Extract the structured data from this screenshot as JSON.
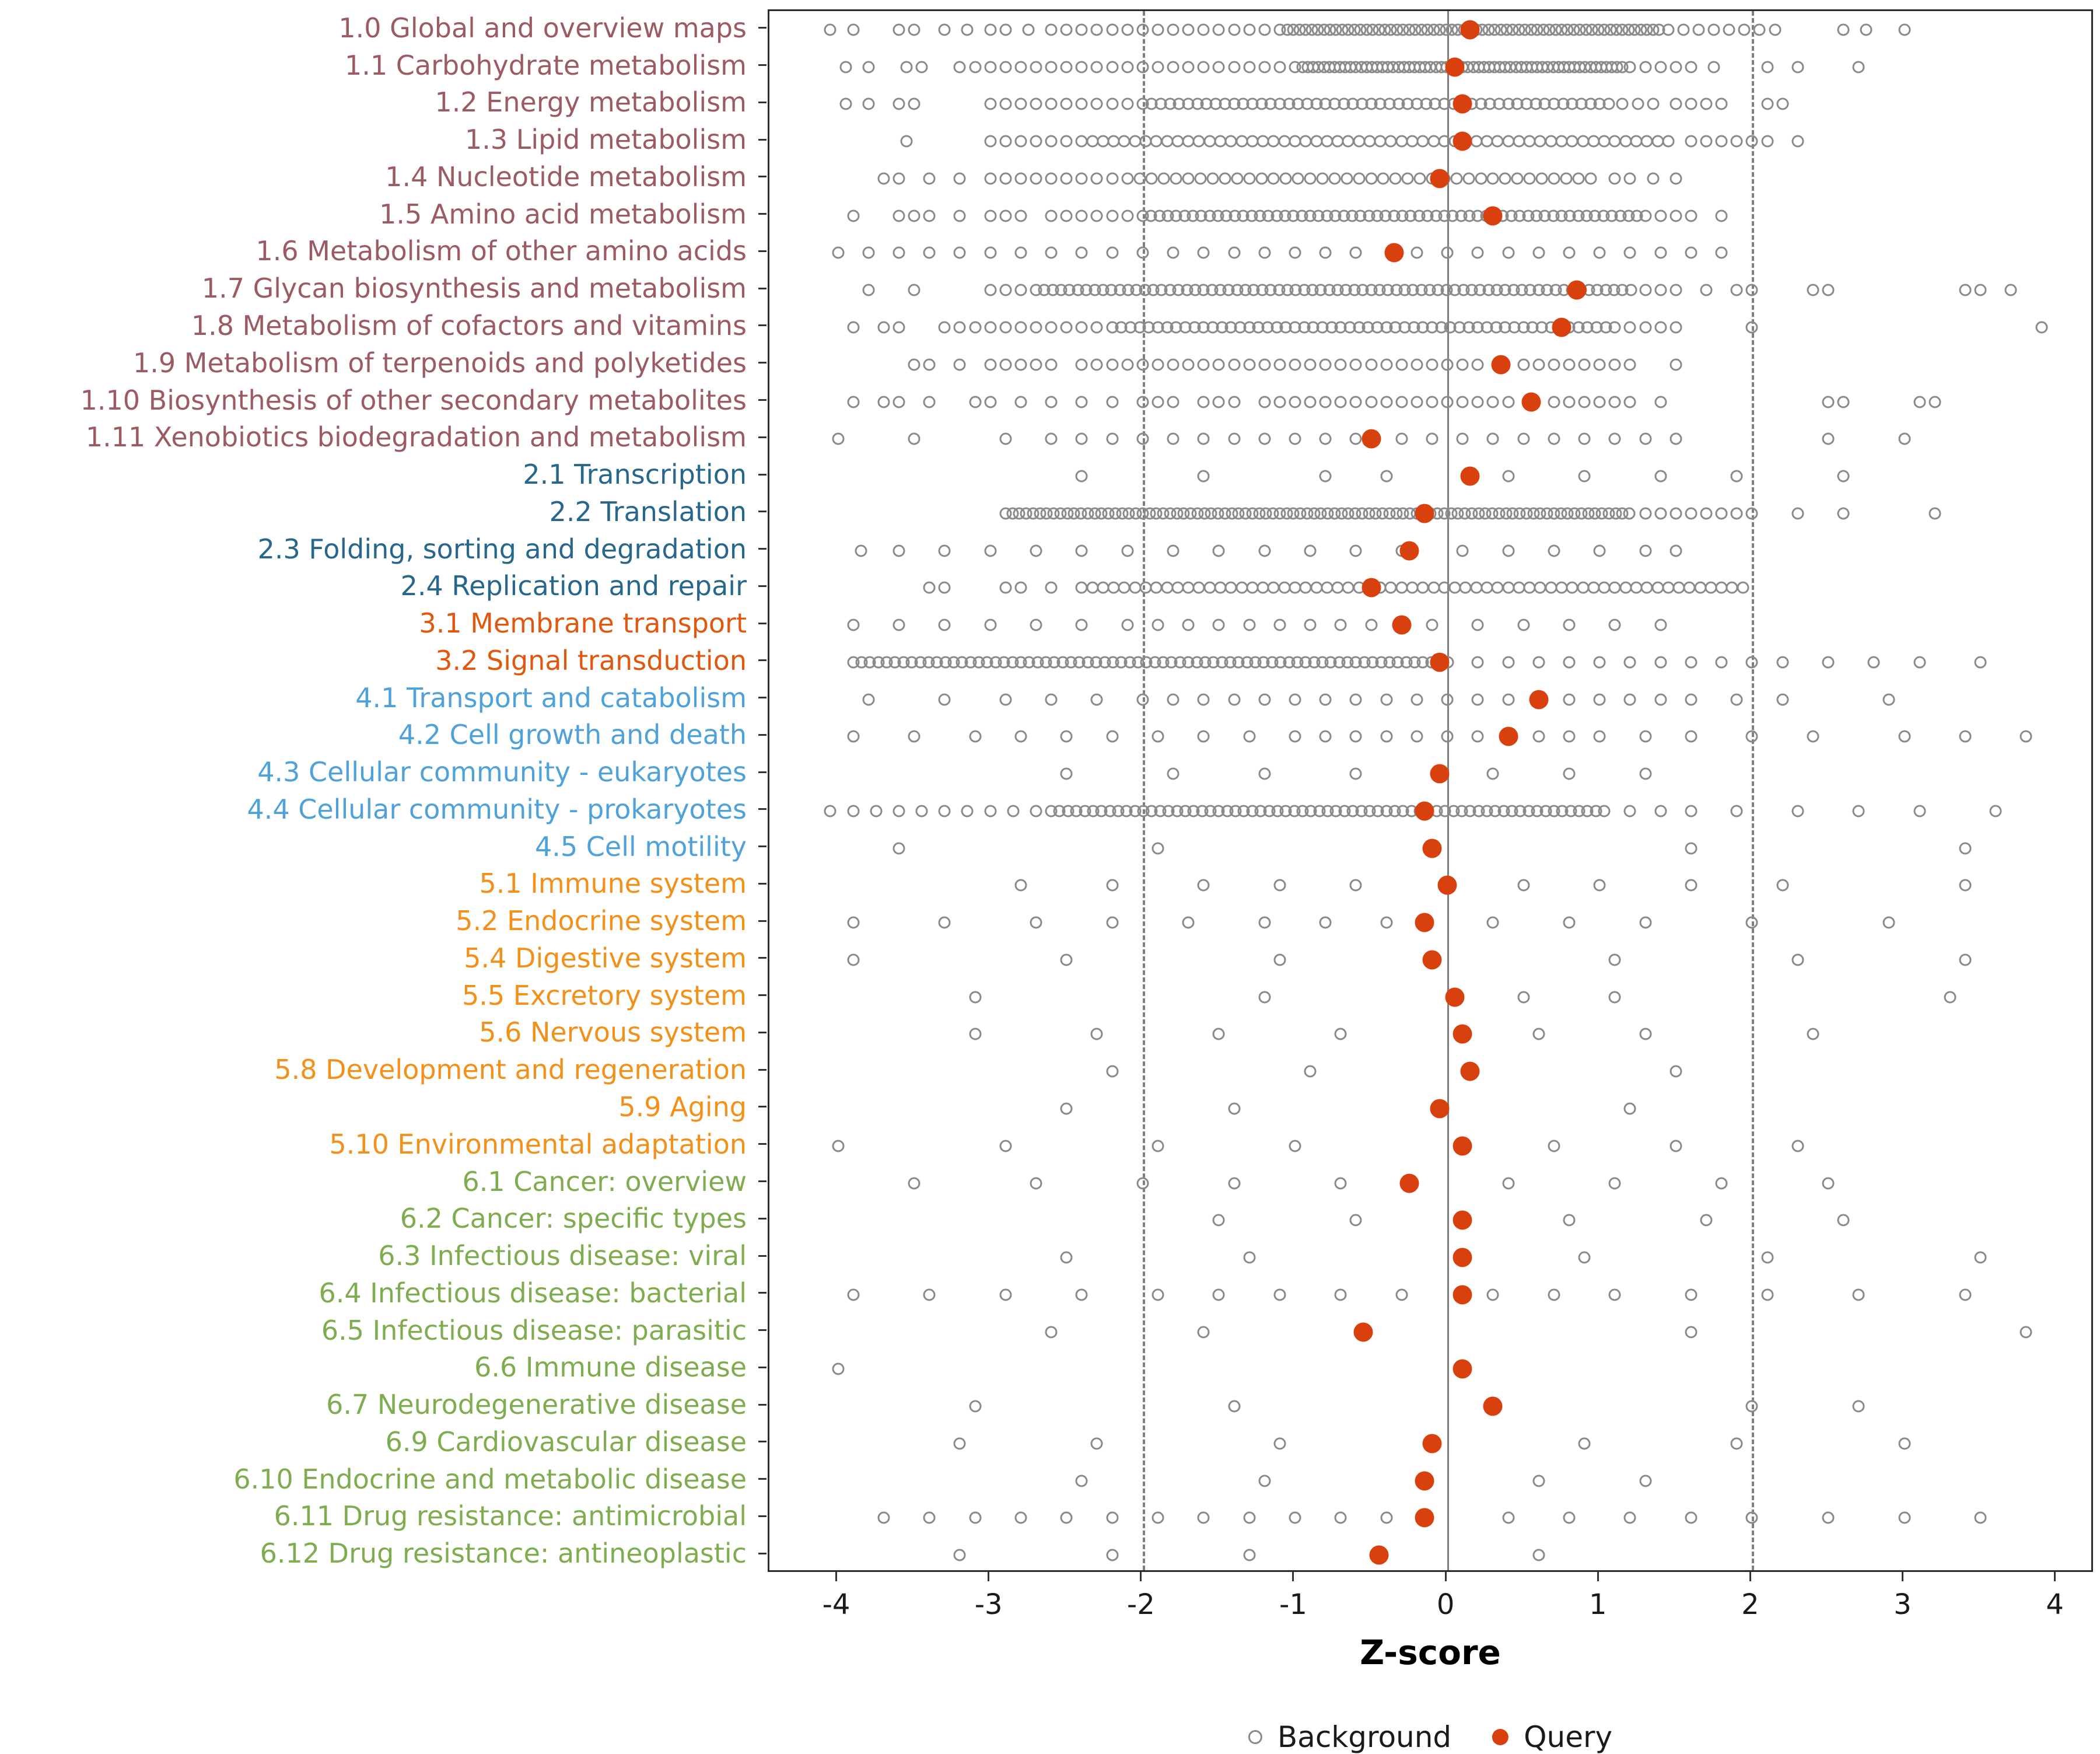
{
  "chart_data": {
    "type": "scatter",
    "title": "",
    "xlabel": "Z-score",
    "ylabel": "",
    "xlim": [
      -4.45,
      4.25
    ],
    "x_ticks": [
      -4,
      -3,
      -2,
      -1,
      0,
      1,
      2,
      3,
      4
    ],
    "grid": false,
    "reference_lines": {
      "solid": [
        0
      ],
      "dashed": [
        -2,
        2
      ]
    },
    "legend": {
      "position": "bottom",
      "items": [
        {
          "label": "Background",
          "marker": "open-circle",
          "color": "#8a8a8a"
        },
        {
          "label": "Query",
          "marker": "filled-circle",
          "color": "#D8400D"
        }
      ]
    },
    "colors": {
      "background_marker": "#8a8a8a",
      "query_marker": "#D8400D",
      "axis_text": "#1a1a1a",
      "reference_line": "#7f7f7f",
      "panel_border": "#2b2b2b"
    },
    "group_colors": {
      "1": "#9C5B63",
      "2": "#27678C",
      "3": "#E2570F",
      "4": "#4FA2D9",
      "5": "#F39019",
      "6": "#7FAC4F"
    },
    "rows": [
      {
        "label": "1.0 Global and overview maps",
        "group": "1",
        "query": 0.15,
        "bg_band": [
          -1.05,
          1.4,
          0.04
        ],
        "bg_points": [
          -4.05,
          -3.9,
          -3.6,
          -3.5,
          -3.3,
          -3.15,
          -3.0,
          -2.9,
          -2.75,
          -2.6,
          -2.5,
          -2.4,
          -2.3,
          -2.2,
          -2.1,
          -2.0,
          -1.9,
          -1.8,
          -1.7,
          -1.6,
          -1.5,
          -1.4,
          -1.3,
          -1.2,
          -1.1,
          1.45,
          1.55,
          1.65,
          1.75,
          1.85,
          1.95,
          2.05,
          2.15,
          2.6,
          2.75,
          3.0
        ]
      },
      {
        "label": "1.1 Carbohydrate metabolism",
        "group": "1",
        "query": 0.05,
        "bg_band": [
          -0.95,
          1.15,
          0.035
        ],
        "bg_points": [
          -3.95,
          -3.8,
          -3.55,
          -3.45,
          -3.2,
          -3.1,
          -3.0,
          -2.9,
          -2.8,
          -2.7,
          -2.6,
          -2.5,
          -2.4,
          -2.3,
          -2.2,
          -2.1,
          -2.0,
          -1.9,
          -1.8,
          -1.7,
          -1.6,
          -1.5,
          -1.4,
          -1.3,
          -1.2,
          -1.1,
          -1.0,
          1.2,
          1.3,
          1.4,
          1.5,
          1.6,
          1.75,
          2.1,
          2.3,
          2.7
        ]
      },
      {
        "label": "1.2 Energy metabolism",
        "group": "1",
        "query": 0.1,
        "bg_band": [
          -2.0,
          1.1,
          0.06
        ],
        "bg_points": [
          -3.95,
          -3.8,
          -3.6,
          -3.5,
          -3.0,
          -2.9,
          -2.8,
          -2.7,
          -2.6,
          -2.5,
          -2.4,
          -2.3,
          -2.2,
          -2.1,
          1.15,
          1.25,
          1.35,
          1.5,
          1.6,
          1.7,
          1.8,
          2.1,
          2.2
        ]
      },
      {
        "label": "1.3 Lipid metabolism",
        "group": "1",
        "query": 0.1,
        "bg_band": [
          -2.4,
          1.5,
          0.07
        ],
        "bg_points": [
          -3.55,
          -3.0,
          -2.9,
          -2.8,
          -2.7,
          -2.6,
          -2.5,
          1.6,
          1.7,
          1.8,
          1.9,
          2.0,
          2.1,
          2.3
        ]
      },
      {
        "label": "1.4 Nucleotide metabolism",
        "group": "1",
        "query": -0.05,
        "bg_band": [
          -2.1,
          1.0,
          0.08
        ],
        "bg_points": [
          -3.7,
          -3.6,
          -3.4,
          -3.2,
          -3.0,
          -2.9,
          -2.8,
          -2.7,
          -2.6,
          -2.5,
          -2.4,
          -2.3,
          -2.2,
          1.1,
          1.2,
          1.35,
          1.5
        ]
      },
      {
        "label": "1.5 Amino acid metabolism",
        "group": "1",
        "query": 0.3,
        "bg_band": [
          -2.0,
          1.25,
          0.055
        ],
        "bg_points": [
          -3.9,
          -3.6,
          -3.5,
          -3.4,
          -3.2,
          -3.0,
          -2.9,
          -2.8,
          -2.6,
          -2.5,
          -2.4,
          -2.3,
          -2.2,
          -2.1,
          1.3,
          1.4,
          1.5,
          1.6,
          1.8
        ]
      },
      {
        "label": "1.6 Metabolism of other amino acids",
        "group": "1",
        "query": -0.35,
        "bg_points": [
          -4.0,
          -3.8,
          -3.6,
          -3.4,
          -3.2,
          -3.0,
          -2.8,
          -2.6,
          -2.4,
          -2.2,
          -2.0,
          -1.8,
          -1.6,
          -1.4,
          -1.2,
          -1.0,
          -0.8,
          -0.6,
          -0.2,
          0.0,
          0.2,
          0.4,
          0.6,
          0.8,
          1.0,
          1.2,
          1.4,
          1.6,
          1.8
        ]
      },
      {
        "label": "1.7 Glycan biosynthesis and metabolism",
        "group": "1",
        "query": 0.85,
        "bg_band": [
          -2.7,
          1.25,
          0.055
        ],
        "bg_points": [
          -3.8,
          -3.5,
          -3.0,
          -2.9,
          -2.8,
          1.3,
          1.4,
          1.5,
          1.7,
          1.9,
          2.0,
          2.4,
          2.5,
          3.4,
          3.5,
          3.7
        ]
      },
      {
        "label": "1.8 Metabolism of cofactors and vitamins",
        "group": "1",
        "query": 0.75,
        "bg_band": [
          -2.2,
          1.15,
          0.06
        ],
        "bg_points": [
          -3.9,
          -3.7,
          -3.6,
          -3.3,
          -3.2,
          -3.1,
          -3.0,
          -2.9,
          -2.8,
          -2.7,
          -2.6,
          -2.5,
          -2.4,
          -2.3,
          1.2,
          1.3,
          1.4,
          1.5,
          2.0,
          3.9
        ]
      },
      {
        "label": "1.9 Metabolism of terpenoids and polyketides",
        "group": "1",
        "query": 0.35,
        "bg_points": [
          -3.5,
          -3.4,
          -3.2,
          -3.0,
          -2.9,
          -2.8,
          -2.7,
          -2.6,
          -2.4,
          -2.3,
          -2.2,
          -2.1,
          -2.0,
          -1.9,
          -1.8,
          -1.7,
          -1.6,
          -1.5,
          -1.4,
          -1.3,
          -1.2,
          -1.1,
          -1.0,
          -0.9,
          -0.8,
          -0.7,
          -0.6,
          -0.5,
          -0.4,
          -0.3,
          -0.2,
          -0.1,
          0.0,
          0.1,
          0.2,
          0.5,
          0.6,
          0.7,
          0.8,
          0.9,
          1.0,
          1.1,
          1.2,
          1.5
        ]
      },
      {
        "label": "1.10 Biosynthesis of other secondary metabolites",
        "group": "1",
        "query": 0.55,
        "bg_points": [
          -3.9,
          -3.7,
          -3.6,
          -3.4,
          -3.1,
          -3.0,
          -2.8,
          -2.6,
          -2.4,
          -2.2,
          -2.0,
          -1.9,
          -1.8,
          -1.6,
          -1.5,
          -1.4,
          -1.2,
          -1.1,
          -1.0,
          -0.9,
          -0.8,
          -0.7,
          -0.6,
          -0.5,
          -0.4,
          -0.3,
          -0.2,
          -0.1,
          0.0,
          0.1,
          0.2,
          0.3,
          0.4,
          0.7,
          0.8,
          0.9,
          1.0,
          1.1,
          1.2,
          1.4,
          2.5,
          2.6,
          3.1,
          3.2
        ]
      },
      {
        "label": "1.11 Xenobiotics biodegradation and metabolism",
        "group": "1",
        "query": -0.5,
        "bg_points": [
          -4.0,
          -3.5,
          -2.9,
          -2.6,
          -2.4,
          -2.2,
          -2.0,
          -1.8,
          -1.6,
          -1.4,
          -1.2,
          -1.0,
          -0.8,
          -0.6,
          -0.3,
          -0.1,
          0.1,
          0.3,
          0.5,
          0.7,
          0.9,
          1.1,
          1.3,
          1.5,
          2.5,
          3.0
        ]
      },
      {
        "label": "2.1 Transcription",
        "group": "2",
        "query": 0.15,
        "bg_points": [
          -2.4,
          -1.6,
          -0.8,
          -0.4,
          0.4,
          0.9,
          1.4,
          1.9,
          2.6
        ]
      },
      {
        "label": "2.2 Translation",
        "group": "2",
        "query": -0.15,
        "bg_band": [
          -2.9,
          1.2,
          0.045
        ],
        "bg_points": [
          1.3,
          1.4,
          1.5,
          1.6,
          1.7,
          1.8,
          1.9,
          2.0,
          2.3,
          2.6,
          3.2
        ]
      },
      {
        "label": "2.3 Folding, sorting and degradation",
        "group": "2",
        "query": -0.25,
        "bg_points": [
          -3.85,
          -3.6,
          -3.3,
          -3.0,
          -2.7,
          -2.4,
          -2.1,
          -1.8,
          -1.5,
          -1.2,
          -0.9,
          -0.6,
          -0.3,
          0.1,
          0.4,
          0.7,
          1.0,
          1.3,
          1.5
        ]
      },
      {
        "label": "2.4 Replication and repair",
        "group": "2",
        "query": -0.5,
        "bg_band": [
          -2.4,
          2.0,
          0.07
        ],
        "bg_points": [
          -3.4,
          -3.3,
          -2.9,
          -2.8,
          -2.6
        ]
      },
      {
        "label": "3.1 Membrane transport",
        "group": "3",
        "query": -0.3,
        "bg_points": [
          -3.9,
          -3.6,
          -3.3,
          -3.0,
          -2.7,
          -2.4,
          -2.1,
          -1.9,
          -1.7,
          -1.5,
          -1.3,
          -1.1,
          -0.9,
          -0.7,
          -0.5,
          -0.1,
          0.2,
          0.5,
          0.8,
          1.1,
          1.4
        ]
      },
      {
        "label": "3.2 Signal transduction",
        "group": "3",
        "query": -0.05,
        "bg_band": [
          -3.9,
          0.05,
          0.055
        ],
        "bg_points": [
          0.2,
          0.4,
          0.6,
          0.8,
          1.0,
          1.2,
          1.4,
          1.6,
          1.8,
          2.0,
          2.2,
          2.5,
          2.8,
          3.1,
          3.5
        ]
      },
      {
        "label": "4.1 Transport and catabolism",
        "group": "4",
        "query": 0.6,
        "bg_points": [
          -3.8,
          -3.3,
          -2.9,
          -2.6,
          -2.3,
          -2.0,
          -1.8,
          -1.6,
          -1.4,
          -1.2,
          -1.0,
          -0.8,
          -0.6,
          -0.4,
          -0.2,
          0.0,
          0.2,
          0.4,
          0.8,
          1.0,
          1.2,
          1.4,
          1.6,
          1.9,
          2.2,
          2.9
        ]
      },
      {
        "label": "4.2 Cell growth and death",
        "group": "4",
        "query": 0.4,
        "bg_points": [
          -3.9,
          -3.5,
          -3.1,
          -2.8,
          -2.5,
          -2.2,
          -1.9,
          -1.6,
          -1.3,
          -1.0,
          -0.8,
          -0.6,
          -0.4,
          -0.2,
          0.0,
          0.2,
          0.6,
          0.8,
          1.0,
          1.3,
          1.6,
          2.0,
          2.4,
          3.0,
          3.4,
          3.8
        ]
      },
      {
        "label": "4.3 Cellular community - eukaryotes",
        "group": "4",
        "query": -0.05,
        "bg_points": [
          -2.5,
          -1.8,
          -1.2,
          -0.6,
          0.3,
          0.8,
          1.3
        ]
      },
      {
        "label": "4.4 Cellular community - prokaryotes",
        "group": "4",
        "query": -0.15,
        "bg_band": [
          -2.6,
          1.05,
          0.055
        ],
        "bg_points": [
          -4.05,
          -3.9,
          -3.75,
          -3.6,
          -3.45,
          -3.3,
          -3.15,
          -3.0,
          -2.85,
          -2.7,
          1.2,
          1.4,
          1.6,
          1.9,
          2.3,
          2.7,
          3.1,
          3.6
        ]
      },
      {
        "label": "4.5 Cell motility",
        "group": "4",
        "query": -0.1,
        "bg_points": [
          -3.6,
          -1.9,
          1.6,
          3.4
        ]
      },
      {
        "label": "5.1 Immune system",
        "group": "5",
        "query": 0.0,
        "bg_points": [
          -2.8,
          -2.2,
          -1.6,
          -1.1,
          -0.6,
          0.5,
          1.0,
          1.6,
          2.2,
          3.4
        ]
      },
      {
        "label": "5.2 Endocrine system",
        "group": "5",
        "query": -0.15,
        "bg_points": [
          -3.9,
          -3.3,
          -2.7,
          -2.2,
          -1.7,
          -1.2,
          -0.8,
          -0.4,
          0.3,
          0.8,
          1.3,
          2.0,
          2.9
        ]
      },
      {
        "label": "5.4 Digestive system",
        "group": "5",
        "query": -0.1,
        "bg_points": [
          -3.9,
          -2.5,
          -1.1,
          1.1,
          2.3,
          3.4
        ]
      },
      {
        "label": "5.5 Excretory system",
        "group": "5",
        "query": 0.05,
        "bg_points": [
          -3.1,
          -1.2,
          0.5,
          1.1,
          3.3
        ]
      },
      {
        "label": "5.6 Nervous system",
        "group": "5",
        "query": 0.1,
        "bg_points": [
          -3.1,
          -2.3,
          -1.5,
          -0.7,
          0.6,
          1.3,
          2.4
        ]
      },
      {
        "label": "5.8 Development and regeneration",
        "group": "5",
        "query": 0.15,
        "bg_points": [
          -2.2,
          -0.9,
          1.5
        ]
      },
      {
        "label": "5.9 Aging",
        "group": "5",
        "query": -0.05,
        "bg_points": [
          -2.5,
          -1.4,
          1.2
        ]
      },
      {
        "label": "5.10 Environmental adaptation",
        "group": "5",
        "query": 0.1,
        "bg_points": [
          -4.0,
          -2.9,
          -1.9,
          -1.0,
          0.7,
          1.5,
          2.3
        ]
      },
      {
        "label": "6.1 Cancer: overview",
        "group": "6",
        "query": -0.25,
        "bg_points": [
          -3.5,
          -2.7,
          -2.0,
          -1.4,
          -0.7,
          0.4,
          1.1,
          1.8,
          2.5
        ]
      },
      {
        "label": "6.2 Cancer: specific types",
        "group": "6",
        "query": 0.1,
        "bg_points": [
          -1.5,
          -0.6,
          0.8,
          1.7,
          2.6
        ]
      },
      {
        "label": "6.3 Infectious disease: viral",
        "group": "6",
        "query": 0.1,
        "bg_points": [
          -2.5,
          -1.3,
          0.9,
          2.1,
          3.5
        ]
      },
      {
        "label": "6.4 Infectious disease: bacterial",
        "group": "6",
        "query": 0.1,
        "bg_points": [
          -3.9,
          -3.4,
          -2.9,
          -2.4,
          -1.9,
          -1.5,
          -1.1,
          -0.7,
          -0.3,
          0.3,
          0.7,
          1.1,
          1.6,
          2.1,
          2.7,
          3.4
        ]
      },
      {
        "label": "6.5 Infectious disease: parasitic",
        "group": "6",
        "query": -0.55,
        "bg_points": [
          -2.6,
          -1.6,
          1.6,
          3.8
        ]
      },
      {
        "label": "6.6 Immune disease",
        "group": "6",
        "query": 0.1,
        "bg_points": [
          -4.0
        ]
      },
      {
        "label": "6.7 Neurodegenerative disease",
        "group": "6",
        "query": 0.3,
        "bg_points": [
          -3.1,
          -1.4,
          2.0,
          2.7
        ]
      },
      {
        "label": "6.9 Cardiovascular disease",
        "group": "6",
        "query": -0.1,
        "bg_points": [
          -3.2,
          -2.3,
          -1.1,
          0.9,
          1.9,
          3.0
        ]
      },
      {
        "label": "6.10 Endocrine and metabolic disease",
        "group": "6",
        "query": -0.15,
        "bg_points": [
          -2.4,
          -1.2,
          0.6,
          1.3
        ]
      },
      {
        "label": "6.11 Drug resistance: antimicrobial",
        "group": "6",
        "query": -0.15,
        "bg_points": [
          -3.7,
          -3.4,
          -3.1,
          -2.8,
          -2.5,
          -2.2,
          -1.9,
          -1.6,
          -1.3,
          -1.0,
          -0.7,
          -0.4,
          0.4,
          0.8,
          1.2,
          1.6,
          2.0,
          2.5,
          3.0,
          3.5
        ]
      },
      {
        "label": "6.12 Drug resistance: antineoplastic",
        "group": "6",
        "query": -0.45,
        "bg_points": [
          -3.2,
          -2.2,
          -1.3,
          0.6
        ]
      }
    ]
  }
}
